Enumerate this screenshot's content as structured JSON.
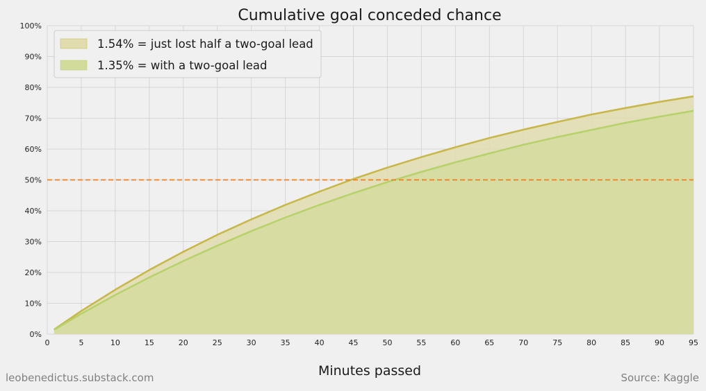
{
  "chart_data": {
    "type": "area",
    "title": "Cumulative goal conceded chance",
    "xlabel": "Minutes passed",
    "ylabel": "",
    "xlim": [
      0,
      95
    ],
    "ylim": [
      0,
      100
    ],
    "x_ticks": [
      0,
      5,
      10,
      15,
      20,
      25,
      30,
      35,
      40,
      45,
      50,
      55,
      60,
      65,
      70,
      75,
      80,
      85,
      90,
      95
    ],
    "y_ticks": [
      0,
      10,
      20,
      30,
      40,
      50,
      60,
      70,
      80,
      90,
      100
    ],
    "y_tick_suffix": "%",
    "grid": true,
    "legend_position": "top-left",
    "series": [
      {
        "name": "1.54% = just lost half a two-goal lead",
        "per_minute_rate": 0.0154,
        "x": [
          1,
          5,
          10,
          15,
          20,
          25,
          30,
          35,
          40,
          45,
          50,
          55,
          60,
          65,
          70,
          75,
          80,
          85,
          90,
          95
        ],
        "values": [
          1.5,
          7.5,
          14.4,
          20.8,
          26.7,
          32.2,
          37.2,
          41.9,
          46.2,
          50.3,
          54.0,
          57.4,
          60.6,
          63.6,
          66.3,
          68.8,
          71.2,
          73.3,
          75.3,
          77.1
        ],
        "line_color": "#c8b84a",
        "fill_color": "#e0dcae"
      },
      {
        "name": "1.35% = with a two-goal lead",
        "per_minute_rate": 0.0135,
        "x": [
          1,
          5,
          10,
          15,
          20,
          25,
          30,
          35,
          40,
          45,
          50,
          55,
          60,
          65,
          70,
          75,
          80,
          85,
          90,
          95
        ],
        "values": [
          1.4,
          6.6,
          12.7,
          18.4,
          23.7,
          28.7,
          33.4,
          37.8,
          41.9,
          45.7,
          49.3,
          52.6,
          55.7,
          58.6,
          61.4,
          63.9,
          66.2,
          68.5,
          70.5,
          72.4
        ],
        "line_color": "#b7d26b",
        "fill_color": "#d3db9b"
      }
    ],
    "reference_line": {
      "y": 50,
      "style": "dashed",
      "color": "#f07f1e"
    }
  },
  "footer": {
    "left": "leobenedictus.substack.com",
    "right": "Source: Kaggle"
  }
}
